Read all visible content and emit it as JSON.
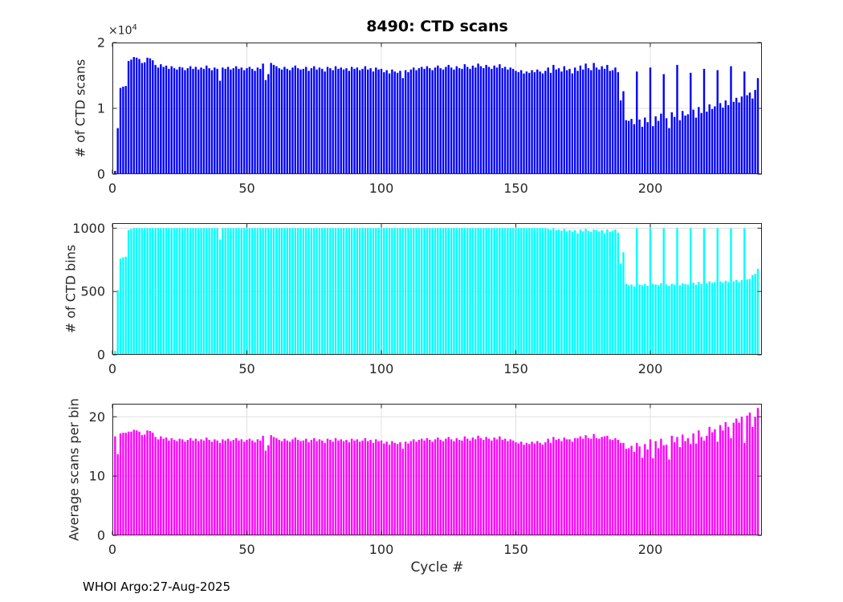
{
  "figure": {
    "footer": "WHOI Argo:27-Aug-2025",
    "x_ticks": [
      0,
      50,
      100,
      150,
      200
    ],
    "grid": "on",
    "legend": "none",
    "colors": {
      "axis": "#262626",
      "grid": "#e0e0e0",
      "scans_bar": "#0000ff",
      "bins_bar": "#00ffff",
      "avg_bar": "#ff00ff"
    }
  },
  "chart_data": [
    {
      "type": "bar",
      "title": "8490: CTD scans",
      "ylabel": "# of CTD scans",
      "y_multiplier_base": "×10",
      "y_multiplier_exp": "4",
      "x_range_cycles": [
        1,
        240
      ],
      "xlim": [
        0,
        241.5
      ],
      "ylim": [
        0,
        20000
      ],
      "y_ticks": [
        0,
        10000,
        20000
      ],
      "y_tick_labels": [
        "0",
        "1",
        "2"
      ],
      "color": "#0000ff",
      "values": [
        500,
        7000,
        13100,
        13300,
        13400,
        17200,
        17400,
        17800,
        17700,
        17500,
        16900,
        17000,
        17700,
        17600,
        17300,
        16600,
        16200,
        16700,
        16300,
        16500,
        16000,
        16400,
        16100,
        15900,
        16300,
        16200,
        15800,
        16100,
        16400,
        16000,
        16300,
        15900,
        16200,
        16000,
        16500,
        16100,
        15800,
        16200,
        16000,
        14200,
        16200,
        16000,
        16300,
        15900,
        16100,
        16400,
        16000,
        16200,
        15800,
        16100,
        16300,
        16000,
        15700,
        16200,
        16000,
        16800,
        14300,
        15200,
        16900,
        16600,
        16400,
        16100,
        15900,
        16300,
        16000,
        15800,
        16200,
        16500,
        16100,
        15900,
        16000,
        16300,
        15700,
        16100,
        16400,
        15900,
        16200,
        16000,
        15600,
        16300,
        16100,
        15800,
        16400,
        16000,
        16200,
        15900,
        16100,
        15700,
        16300,
        16000,
        16200,
        15800,
        16000,
        16400,
        15900,
        16100,
        15600,
        16200,
        15900,
        16000,
        15500,
        15800,
        15300,
        15900,
        15600,
        15400,
        15700,
        14600,
        15800,
        15500,
        15900,
        16200,
        15800,
        16100,
        16300,
        16000,
        16400,
        16100,
        15800,
        16200,
        16500,
        16100,
        15900,
        16300,
        16600,
        16200,
        15900,
        16400,
        16100,
        16000,
        16700,
        16300,
        16000,
        16500,
        16200,
        16800,
        16400,
        16100,
        16600,
        16300,
        16000,
        16500,
        16200,
        16700,
        16100,
        16300,
        15900,
        16200,
        16000,
        15700,
        15500,
        15800,
        15300,
        15600,
        15400,
        15800,
        15500,
        15900,
        15600,
        15300,
        15700,
        16200,
        15400,
        16600,
        15900,
        16100,
        15600,
        16400,
        15800,
        16000,
        15300,
        16200,
        15700,
        16500,
        15900,
        16800,
        16100,
        15800,
        16900,
        16200,
        15900,
        16400,
        16000,
        16600,
        15700,
        15800,
        16200,
        15500,
        11200,
        12600,
        8200,
        8100,
        8400,
        7600,
        15600,
        8300,
        7200,
        8600,
        7900,
        16200,
        7300,
        8800,
        8100,
        9200,
        15200,
        8500,
        7000,
        9400,
        8700,
        16600,
        8200,
        9600,
        8900,
        9100,
        15400,
        9800,
        8600,
        10200,
        9300,
        16000,
        9500,
        10600,
        9900,
        10300,
        15800,
        10800,
        10100,
        11200,
        10500,
        16400,
        11000,
        11600,
        10900,
        11800,
        15600,
        12000,
        12400,
        11500,
        12800,
        14600
      ]
    },
    {
      "type": "bar",
      "ylabel": "# of CTD bins",
      "x_range_cycles": [
        1,
        240
      ],
      "xlim": [
        0,
        241.5
      ],
      "ylim": [
        0,
        1040
      ],
      "y_ticks": [
        0,
        500,
        1000
      ],
      "y_tick_labels": [
        "0",
        "500",
        "1000"
      ],
      "color": "#00ffff",
      "values": [
        30,
        510,
        760,
        770,
        775,
        985,
        995,
        1000,
        1000,
        1000,
        1000,
        1000,
        1000,
        1000,
        1000,
        1000,
        1000,
        1000,
        1000,
        1000,
        1000,
        1000,
        1000,
        1000,
        1000,
        1000,
        1000,
        1000,
        1000,
        1000,
        1000,
        1000,
        1000,
        1000,
        1000,
        1000,
        1000,
        1000,
        1000,
        910,
        1000,
        1000,
        1000,
        1000,
        1000,
        1000,
        1000,
        1000,
        1000,
        1000,
        1000,
        1000,
        1000,
        1000,
        1000,
        1000,
        1000,
        1000,
        1000,
        1000,
        1000,
        1000,
        1000,
        1000,
        1000,
        1000,
        1000,
        1000,
        1000,
        1000,
        1000,
        1000,
        1000,
        1000,
        1000,
        1000,
        1000,
        1000,
        1000,
        1000,
        1000,
        1000,
        1000,
        1000,
        1000,
        1000,
        1000,
        1000,
        1000,
        1000,
        1000,
        1000,
        1000,
        1000,
        1000,
        1000,
        1000,
        1000,
        1000,
        1000,
        1000,
        1000,
        1000,
        1000,
        1000,
        1000,
        1000,
        1000,
        1000,
        1000,
        1000,
        1000,
        1000,
        1000,
        1000,
        1000,
        1000,
        1000,
        1000,
        1000,
        1000,
        1000,
        1000,
        1000,
        1000,
        1000,
        1000,
        1000,
        1000,
        1000,
        1000,
        1000,
        1000,
        1000,
        1000,
        1000,
        1000,
        1000,
        1000,
        1000,
        1000,
        1000,
        1000,
        1000,
        1000,
        1000,
        1000,
        1000,
        1000,
        1000,
        1000,
        1000,
        1000,
        1000,
        1000,
        1000,
        1000,
        1000,
        1000,
        1000,
        1000,
        995,
        990,
        1000,
        985,
        990,
        980,
        995,
        975,
        985,
        970,
        985,
        960,
        990,
        975,
        995,
        980,
        970,
        990,
        985,
        975,
        985,
        960,
        990,
        970,
        980,
        990,
        965,
        720,
        810,
        560,
        550,
        555,
        540,
        1000,
        555,
        550,
        560,
        545,
        1000,
        560,
        555,
        550,
        565,
        1000,
        555,
        545,
        560,
        555,
        1000,
        550,
        565,
        560,
        555,
        1000,
        570,
        555,
        575,
        560,
        1000,
        565,
        580,
        570,
        575,
        1000,
        580,
        570,
        585,
        575,
        1000,
        580,
        590,
        575,
        590,
        1000,
        595,
        600,
        630,
        640,
        680
      ]
    },
    {
      "type": "bar",
      "ylabel": "Average scans per bin",
      "xlabel": "Cycle #",
      "x_range_cycles": [
        1,
        240
      ],
      "xlim": [
        0,
        241.5
      ],
      "ylim": [
        0,
        22.2
      ],
      "y_ticks": [
        0,
        10,
        20
      ],
      "y_tick_labels": [
        "0",
        "10",
        "20"
      ],
      "color": "#ff00ff",
      "values": [
        16.7,
        13.7,
        17.2,
        17.3,
        17.3,
        17.5,
        17.5,
        17.8,
        17.7,
        17.5,
        16.9,
        17.0,
        17.7,
        17.6,
        17.3,
        16.6,
        16.2,
        16.7,
        16.3,
        16.5,
        16.0,
        16.4,
        16.1,
        15.9,
        16.3,
        16.2,
        15.8,
        16.1,
        16.4,
        16.0,
        16.3,
        15.9,
        16.2,
        16.0,
        16.5,
        16.1,
        15.8,
        16.2,
        16.0,
        15.6,
        16.2,
        16.0,
        16.3,
        15.9,
        16.1,
        16.4,
        16.0,
        16.2,
        15.8,
        16.1,
        16.3,
        16.0,
        15.7,
        16.2,
        16.0,
        16.8,
        14.3,
        15.2,
        16.9,
        16.6,
        16.4,
        16.1,
        15.9,
        16.3,
        16.0,
        15.8,
        16.2,
        16.5,
        16.1,
        15.9,
        16.0,
        16.3,
        15.7,
        16.1,
        16.4,
        15.9,
        16.2,
        16.0,
        15.6,
        16.3,
        16.1,
        15.8,
        16.4,
        16.0,
        16.2,
        15.9,
        16.1,
        15.7,
        16.3,
        16.0,
        16.2,
        15.8,
        16.0,
        16.4,
        15.9,
        16.1,
        15.6,
        16.2,
        15.9,
        16.0,
        15.5,
        15.8,
        15.3,
        15.9,
        15.6,
        15.4,
        15.7,
        14.6,
        15.8,
        15.5,
        15.9,
        16.2,
        15.8,
        16.1,
        16.3,
        16.0,
        16.4,
        16.1,
        15.8,
        16.2,
        16.5,
        16.1,
        15.9,
        16.3,
        16.6,
        16.2,
        15.9,
        16.4,
        16.1,
        16.0,
        16.7,
        16.3,
        16.0,
        16.5,
        16.2,
        16.8,
        16.4,
        16.1,
        16.6,
        16.3,
        16.0,
        16.5,
        16.2,
        16.7,
        16.1,
        16.3,
        15.9,
        16.2,
        16.0,
        15.7,
        15.5,
        15.8,
        15.3,
        15.6,
        15.4,
        15.8,
        15.5,
        15.9,
        15.6,
        15.3,
        15.7,
        16.3,
        15.6,
        16.6,
        16.1,
        16.3,
        15.9,
        16.5,
        16.2,
        16.2,
        15.8,
        16.4,
        16.4,
        16.7,
        16.3,
        16.9,
        16.4,
        16.3,
        17.1,
        16.4,
        16.3,
        16.6,
        16.7,
        16.8,
        16.2,
        16.1,
        16.4,
        16.1,
        15.6,
        15.6,
        14.6,
        14.7,
        15.1,
        14.1,
        15.6,
        15.0,
        13.1,
        15.4,
        14.5,
        16.2,
        13.0,
        15.9,
        14.7,
        16.3,
        15.2,
        15.3,
        12.8,
        16.8,
        15.7,
        16.6,
        14.9,
        17.0,
        15.9,
        16.4,
        15.4,
        17.2,
        15.5,
        17.7,
        16.6,
        16.0,
        16.8,
        18.3,
        17.4,
        17.9,
        15.8,
        18.6,
        17.7,
        19.1,
        18.3,
        16.4,
        19.0,
        19.7,
        19.0,
        20.0,
        15.6,
        20.2,
        20.7,
        18.3,
        20.0,
        21.5
      ]
    }
  ]
}
